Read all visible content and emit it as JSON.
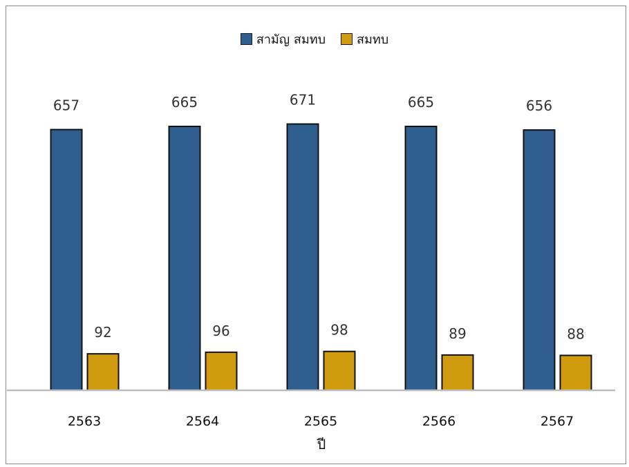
{
  "chart_data": {
    "type": "bar",
    "title": "",
    "xlabel": "ปี",
    "ylabel": "",
    "categories": [
      "2563",
      "2564",
      "2565",
      "2566",
      "2567"
    ],
    "series": [
      {
        "name": "สามัญ สมทบ",
        "color": "#2e5f8e",
        "values": [
          657,
          665,
          671,
          665,
          656
        ]
      },
      {
        "name": "สมทบ",
        "color": "#d09b0f",
        "values": [
          92,
          96,
          98,
          89,
          88
        ]
      }
    ],
    "ylim": [
      0,
      700
    ],
    "grid": false,
    "legend_position": "top-center",
    "data_labels": true
  }
}
